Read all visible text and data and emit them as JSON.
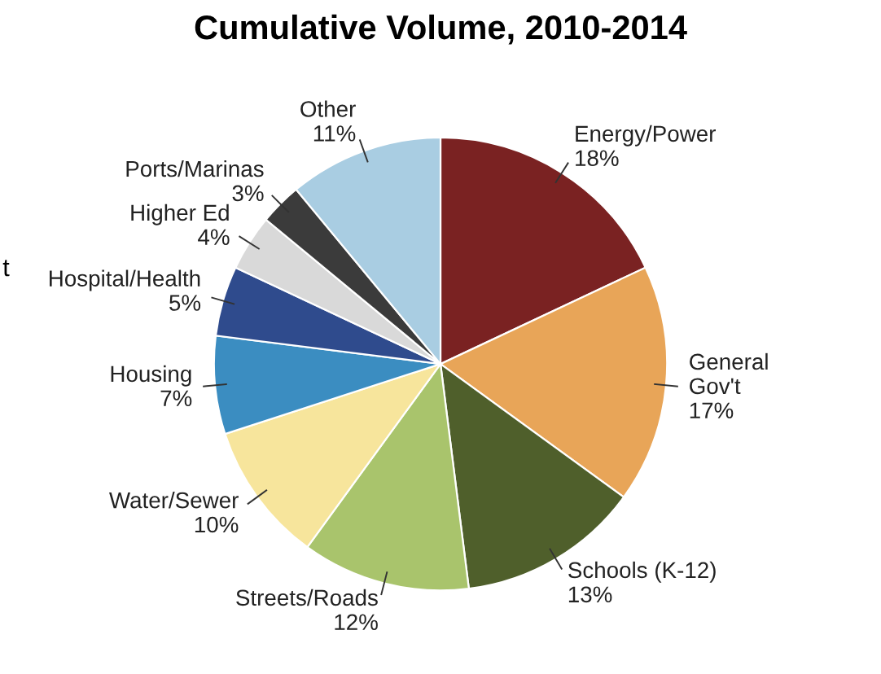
{
  "chart_data": {
    "type": "pie",
    "title": "Cumulative Volume, 2010-2014",
    "categories": [
      "Energy/Power",
      "General\nGov't",
      "Schools (K-12)",
      "Streets/Roads",
      "Water/Sewer",
      "Housing",
      "Hospital/Health",
      "Higher Ed",
      "Ports/Marinas",
      "Other"
    ],
    "values": [
      18,
      17,
      13,
      12,
      10,
      7,
      5,
      4,
      3,
      11
    ],
    "value_labels": [
      "18%",
      "17%",
      "13%",
      "12%",
      "10%",
      "7%",
      "5%",
      "4%",
      "3%",
      "11%"
    ],
    "colors": [
      "#7a2222",
      "#e8a558",
      "#4f5f2b",
      "#a9c46c",
      "#f7e59c",
      "#3b8dc1",
      "#2f4b8d",
      "#d9d9d9",
      "#3b3b3b",
      "#a9cde2"
    ],
    "annotations": [
      "t"
    ]
  }
}
